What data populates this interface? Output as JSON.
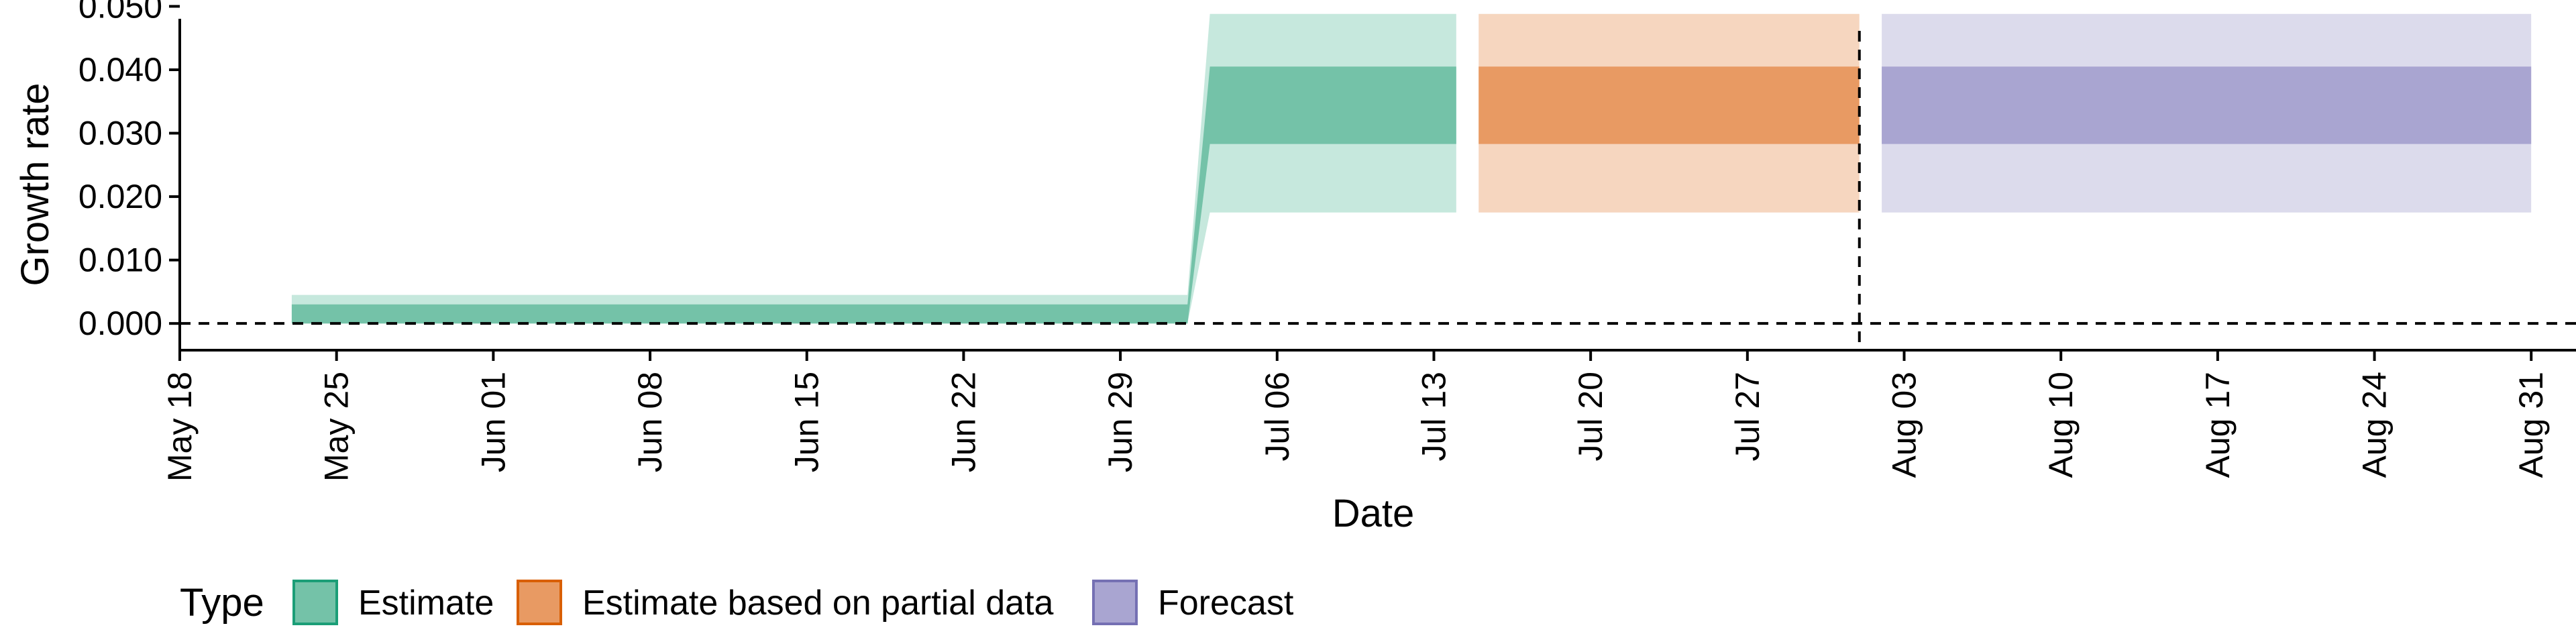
{
  "chart_data": {
    "type": "area",
    "xlabel": "Date",
    "ylabel": "Growth rate",
    "x_ticks": [
      "May 18",
      "May 25",
      "Jun 01",
      "Jun 08",
      "Jun 15",
      "Jun 22",
      "Jun 29",
      "Jul 06",
      "Jul 13",
      "Jul 20",
      "Jul 27",
      "Aug 03",
      "Aug 10",
      "Aug 17",
      "Aug 24",
      "Aug 31"
    ],
    "x_tick_dates": [
      "2020-05-18",
      "2020-05-25",
      "2020-06-01",
      "2020-06-08",
      "2020-06-15",
      "2020-06-22",
      "2020-06-29",
      "2020-07-06",
      "2020-07-13",
      "2020-07-20",
      "2020-07-27",
      "2020-08-03",
      "2020-08-10",
      "2020-08-17",
      "2020-08-24",
      "2020-08-31"
    ],
    "xlim": [
      "2020-05-18",
      "2020-09-02"
    ],
    "y_ticks": [
      "0.000",
      "0.010",
      "0.020",
      "0.030",
      "0.040",
      "0.050"
    ],
    "ylim": [
      -0.004,
      0.051
    ],
    "hline_y": 0,
    "vline_x": "2020-08-01",
    "legend": {
      "title": "Type",
      "position": "bottom",
      "items": [
        {
          "label": "Estimate",
          "fill": "#74c2a8",
          "stroke": "#1b9e77"
        },
        {
          "label": "Estimate based on partial data",
          "fill": "#e89a63",
          "stroke": "#d95f02"
        },
        {
          "label": "Forecast",
          "fill": "#a9a5d1",
          "stroke": "#7570b3"
        }
      ]
    },
    "series": [
      {
        "name": "Estimate",
        "color_inner": "#74c2a8",
        "color_outer": "#c6e8dd",
        "points": [
          {
            "x": "2020-05-23",
            "lower90": 0.0,
            "lower50": 0.0,
            "upper50": 0.003,
            "upper90": 0.0045
          },
          {
            "x": "2020-07-02",
            "lower90": 0.0,
            "lower50": 0.0,
            "upper50": 0.003,
            "upper90": 0.0045
          },
          {
            "x": "2020-07-03",
            "lower90": 0.0175,
            "lower50": 0.0283,
            "upper50": 0.0405,
            "upper90": 0.0488
          },
          {
            "x": "2020-07-14",
            "lower90": 0.0175,
            "lower50": 0.0283,
            "upper50": 0.0405,
            "upper90": 0.0488
          }
        ]
      },
      {
        "name": "Estimate based on partial data",
        "color_inner": "#e89a63",
        "color_outer": "#f6d6bf",
        "points": [
          {
            "x": "2020-07-15",
            "lower90": 0.0175,
            "lower50": 0.0283,
            "upper50": 0.0405,
            "upper90": 0.0488
          },
          {
            "x": "2020-08-01",
            "lower90": 0.0175,
            "lower50": 0.0283,
            "upper50": 0.0405,
            "upper90": 0.0488
          }
        ]
      },
      {
        "name": "Forecast",
        "color_inner": "#a9a5d1",
        "color_outer": "#dcdbec",
        "points": [
          {
            "x": "2020-08-02",
            "lower90": 0.0175,
            "lower50": 0.0283,
            "upper50": 0.0405,
            "upper90": 0.0488
          },
          {
            "x": "2020-08-31",
            "lower90": 0.0175,
            "lower50": 0.0283,
            "upper50": 0.0405,
            "upper90": 0.0488
          }
        ]
      }
    ]
  }
}
